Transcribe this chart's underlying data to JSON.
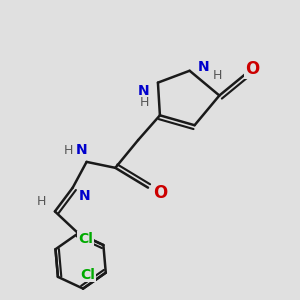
{
  "bg_color": "#e0e0e0",
  "bond_color": "#1a1a1a",
  "lw": 1.8,
  "atom_colors": {
    "N": "#0000cc",
    "O": "#cc0000",
    "H": "#555555",
    "Cl": "#00aa00"
  },
  "figsize": [
    3.0,
    3.0
  ],
  "dpi": 100
}
